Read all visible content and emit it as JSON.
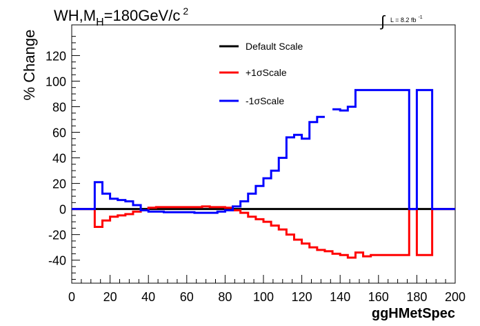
{
  "header": {
    "title_main": "WH,M",
    "title_sub": "H",
    "title_rest": "=180GeV/c",
    "title_sup": "2",
    "lumi_integral": "∫",
    "lumi_label": "L = 8.2 fb",
    "lumi_sup": "-1"
  },
  "chart_data": {
    "type": "line",
    "title": "WH,MH=180GeV/c2",
    "xlabel": "ggHMetSpec",
    "ylabel": "% Change",
    "xlim": [
      0,
      200
    ],
    "ylim": [
      -58,
      144
    ],
    "xticks": [
      0,
      20,
      40,
      60,
      80,
      100,
      120,
      140,
      160,
      180,
      200
    ],
    "yticks": [
      -40,
      -20,
      0,
      20,
      40,
      60,
      80,
      100,
      120
    ],
    "legend": {
      "placement": "top-center",
      "entries": [
        {
          "label": "Default Scale",
          "color": "#000000"
        },
        {
          "label": "+1σScale",
          "color": "#ff0000"
        },
        {
          "label": "-1σScale",
          "color": "#0000ff"
        }
      ]
    },
    "series": [
      {
        "name": "Default Scale",
        "color": "#000000",
        "bin_width": 4,
        "x_start": 0,
        "values": [
          0,
          0,
          0,
          0,
          0,
          0,
          0,
          0,
          0,
          0,
          0,
          0,
          0,
          0,
          0,
          0,
          0,
          0,
          0,
          0,
          0,
          0,
          0,
          0,
          0,
          0,
          0,
          0,
          0,
          0,
          0,
          0,
          0,
          0,
          0,
          0,
          0,
          0,
          0,
          0,
          0,
          0,
          0,
          0,
          0,
          0,
          0,
          0,
          0,
          0
        ]
      },
      {
        "name": "+1σScale",
        "color": "#ff0000",
        "bin_width": 4,
        "x_start": 0,
        "values": [
          0,
          0,
          0,
          -14,
          -9,
          -6,
          -5,
          -4,
          -2,
          -1,
          1,
          1.5,
          1.5,
          1.5,
          1.5,
          1.5,
          1.5,
          2,
          1.5,
          1.5,
          1,
          -1,
          -3,
          -6,
          -8,
          -10,
          -13,
          -16,
          -20,
          -24,
          -27,
          -30,
          -32,
          -33,
          -35,
          -36,
          -38,
          -34,
          -37,
          -36,
          -36,
          -36,
          -36,
          -36,
          0,
          -36,
          -36,
          0,
          0,
          0
        ]
      },
      {
        "name": "-1σScale",
        "color": "#0000ff",
        "bin_width": 4,
        "x_start": 0,
        "values": [
          0,
          0,
          0,
          21,
          12,
          8,
          7,
          6,
          3,
          -1,
          -2,
          -2,
          -2.5,
          -2.5,
          -2.5,
          -2.5,
          -3,
          -3,
          -3,
          -2,
          -1,
          2,
          6,
          12,
          18,
          24,
          30,
          40,
          56,
          58,
          55,
          68,
          72,
          null,
          78,
          77,
          80,
          93,
          93,
          93,
          93,
          93,
          93,
          93,
          0,
          93,
          93,
          0,
          0,
          0
        ]
      }
    ]
  }
}
